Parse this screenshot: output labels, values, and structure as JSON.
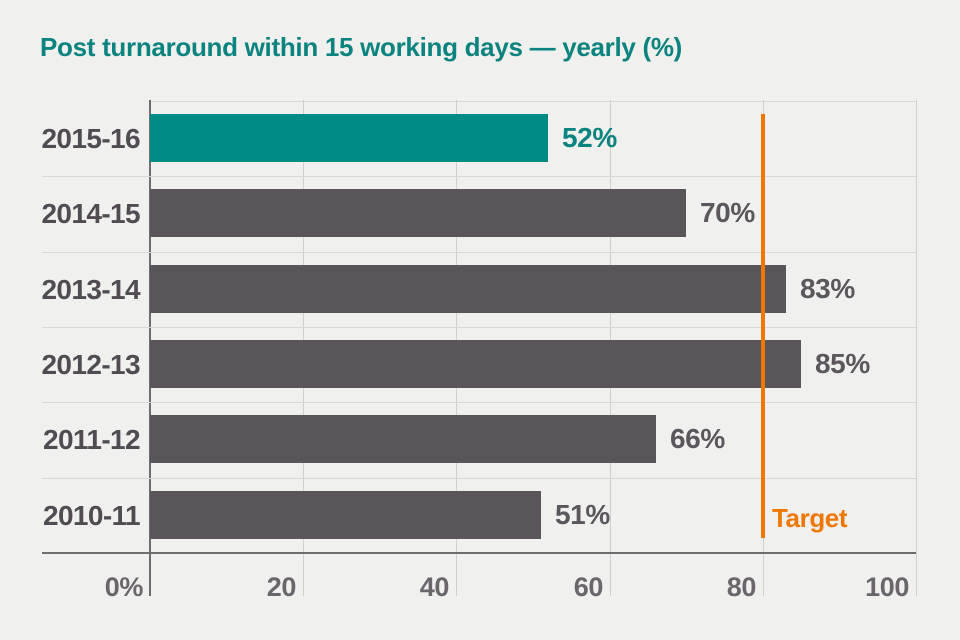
{
  "title": "Post turnaround within 15 working days — yearly (%)",
  "colors": {
    "background": "#f0f0ef",
    "title_teal": "#0b837e",
    "bar_highlight": "#008b85",
    "bar_gray": "#595559",
    "category_label": "#514c52",
    "value_label": "#5b575c",
    "axis_label": "#6b666b",
    "grid_line": "#d0cfce",
    "row_separator": "#d9d8d6",
    "axis_line": "#6e6c6e",
    "target_orange": "#ee7802"
  },
  "chart_data": {
    "type": "bar",
    "orientation": "horizontal",
    "title": "Post turnaround within 15 working days — yearly (%)",
    "categories": [
      "2015-16",
      "2014-15",
      "2013-14",
      "2012-13",
      "2011-12",
      "2010-11"
    ],
    "values": [
      52,
      70,
      83,
      85,
      66,
      51
    ],
    "value_labels": [
      "52%",
      "70%",
      "83%",
      "85%",
      "66%",
      "51%"
    ],
    "highlight_index": 0,
    "xlim": [
      0,
      100
    ],
    "x_tick_values": [
      0,
      20,
      40,
      60,
      80,
      100
    ],
    "x_ticks": [
      "0%",
      "20",
      "40",
      "60",
      "80",
      "100"
    ],
    "grid": true,
    "target": {
      "value": 80,
      "label": "Target"
    }
  }
}
